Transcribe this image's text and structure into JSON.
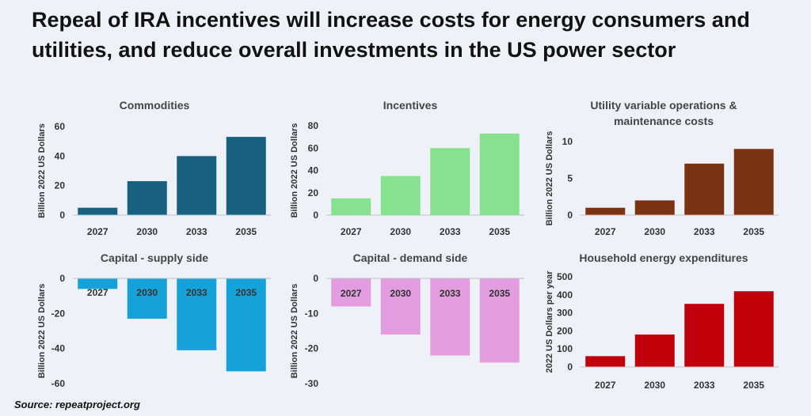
{
  "title": "Repeal of IRA incentives will increase costs for energy consumers and utilities, and reduce overall investments in the US power sector",
  "source": "Source: repeatproject.org",
  "chart_data": [
    {
      "type": "bar",
      "title": [
        "Commodities"
      ],
      "categories": [
        "2027",
        "2030",
        "2033",
        "2035"
      ],
      "values": [
        5,
        23,
        40,
        53
      ],
      "ylabel": "Billion 2022 US Dollars",
      "ylim": [
        0,
        60
      ],
      "yticks": [
        0,
        20,
        40,
        60
      ],
      "color": "#17607f",
      "grid": false
    },
    {
      "type": "bar",
      "title": [
        "Incentives"
      ],
      "categories": [
        "2027",
        "2030",
        "2033",
        "2035"
      ],
      "values": [
        15,
        35,
        60,
        73
      ],
      "ylabel": "Billion 2022 US Dollars",
      "ylim": [
        0,
        80
      ],
      "yticks": [
        0,
        20,
        40,
        60,
        80
      ],
      "color": "#86e28e",
      "grid": false
    },
    {
      "type": "bar",
      "title": [
        "Utility variable operations &",
        "maintenance costs"
      ],
      "categories": [
        "2027",
        "2030",
        "2033",
        "2035"
      ],
      "values": [
        1,
        2,
        7,
        9
      ],
      "ylabel": "Billion 2022 US Dollars",
      "ylim": [
        0,
        10
      ],
      "yticks": [
        0,
        5,
        10
      ],
      "color": "#7b3212",
      "grid": false
    },
    {
      "type": "bar",
      "title": [
        "Capital - supply side"
      ],
      "categories": [
        "2027",
        "2030",
        "2033",
        "2035"
      ],
      "values": [
        -6,
        -23,
        -41,
        -53
      ],
      "ylabel": "Billion 2022 US Dollars",
      "ylim": [
        -60,
        0
      ],
      "yticks": [
        0,
        -20,
        -40,
        -60
      ],
      "color": "#14a2d8",
      "grid": false
    },
    {
      "type": "bar",
      "title": [
        "Capital - demand side"
      ],
      "categories": [
        "2027",
        "2030",
        "2033",
        "2035"
      ],
      "values": [
        -8,
        -16,
        -22,
        -24
      ],
      "ylabel": "Billion 2022 US Dollars",
      "ylim": [
        -30,
        0
      ],
      "yticks": [
        0,
        -10,
        -20,
        -30
      ],
      "color": "#e49ce0",
      "grid": false
    },
    {
      "type": "bar",
      "title": [
        "Household energy expenditures"
      ],
      "categories": [
        "2027",
        "2030",
        "2033",
        "2035"
      ],
      "values": [
        60,
        180,
        350,
        420
      ],
      "ylabel": "2022 US Dollars per year",
      "ylim": [
        0,
        500
      ],
      "yticks": [
        0,
        100,
        200,
        300,
        400,
        500
      ],
      "color": "#c0000a",
      "grid": false
    }
  ]
}
